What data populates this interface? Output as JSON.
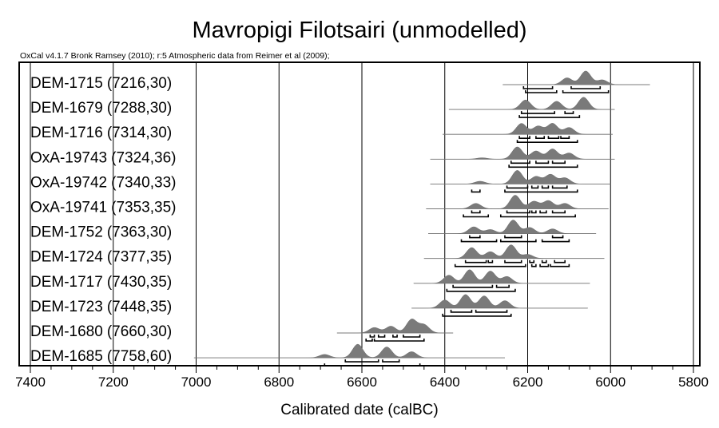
{
  "chart_data": {
    "type": "range-plot",
    "title": "Mavropigi Filotsairi (unmodelled)",
    "subtitle": "OxCal v4.1.7 Bronk Ramsey (2010); r:5 Atmospheric data from Reimer et al (2009);",
    "xlabel": "Calibrated date (calBC)",
    "xlim": [
      7400,
      5800
    ],
    "xticks": [
      7400,
      7200,
      7000,
      6800,
      6600,
      6400,
      6200,
      6000,
      5800
    ],
    "x_tick_labels": [
      "7400",
      "7200",
      "7000",
      "6800",
      "6600",
      "6400",
      "6200",
      "6000",
      "5800"
    ],
    "grid": true,
    "series": [
      {
        "label": "DEM-1715",
        "date": "(7216,30)",
        "range": [
          6260,
          5905
        ],
        "peaks": [
          [
            6105,
            0.5
          ],
          [
            6060,
            1.0
          ],
          [
            6020,
            0.35
          ]
        ],
        "hpd68": [
          [
            6210,
            6140
          ],
          [
            6095,
            6025
          ]
        ],
        "hpd95": [
          [
            6205,
            6130
          ],
          [
            6115,
            6005
          ]
        ]
      },
      {
        "label": "DEM-1679",
        "date": "(7288,30)",
        "range": [
          6390,
          5990
        ],
        "peaks": [
          [
            6205,
            0.7
          ],
          [
            6130,
            0.6
          ],
          [
            6065,
            0.9
          ]
        ],
        "hpd68": [
          [
            6215,
            6135
          ],
          [
            6110,
            6090
          ]
        ],
        "hpd95": [
          [
            6220,
            6075
          ]
        ]
      },
      {
        "label": "DEM-1716",
        "date": "(7314,30)",
        "range": [
          6405,
          5995
        ],
        "peaks": [
          [
            6215,
            0.8
          ],
          [
            6175,
            0.6
          ],
          [
            6140,
            0.8
          ],
          [
            6100,
            0.5
          ]
        ],
        "hpd68": [
          [
            6220,
            6195
          ],
          [
            6180,
            6160
          ],
          [
            6150,
            6125
          ],
          [
            6120,
            6100
          ]
        ],
        "hpd95": [
          [
            6225,
            6080
          ]
        ]
      },
      {
        "label": "OxA-19743",
        "date": "(7324,36)",
        "range": [
          6435,
          5990
        ],
        "peaks": [
          [
            6310,
            0.1
          ],
          [
            6225,
            0.9
          ],
          [
            6180,
            0.6
          ],
          [
            6140,
            0.75
          ],
          [
            6100,
            0.45
          ]
        ],
        "hpd68": [
          [
            6240,
            6195
          ],
          [
            6180,
            6150
          ],
          [
            6140,
            6110
          ]
        ],
        "hpd95": [
          [
            6245,
            6080
          ]
        ]
      },
      {
        "label": "OxA-19742",
        "date": "(7340,33)",
        "range": [
          6435,
          6000
        ],
        "peaks": [
          [
            6315,
            0.2
          ],
          [
            6225,
            1.0
          ],
          [
            6180,
            0.55
          ],
          [
            6145,
            0.7
          ],
          [
            6110,
            0.45
          ]
        ],
        "hpd68": [
          [
            6250,
            6200
          ],
          [
            6190,
            6175
          ],
          [
            6165,
            6150
          ],
          [
            6140,
            6105
          ]
        ],
        "hpd95": [
          [
            6335,
            6315
          ],
          [
            6255,
            6080
          ]
        ]
      },
      {
        "label": "OxA-19741",
        "date": "(7353,35)",
        "range": [
          6445,
          6005
        ],
        "peaks": [
          [
            6325,
            0.4
          ],
          [
            6230,
            1.0
          ],
          [
            6185,
            0.55
          ],
          [
            6150,
            0.6
          ],
          [
            6110,
            0.4
          ]
        ],
        "hpd68": [
          [
            6335,
            6315
          ],
          [
            6250,
            6195
          ],
          [
            6190,
            6180
          ],
          [
            6170,
            6155
          ],
          [
            6140,
            6110
          ]
        ],
        "hpd95": [
          [
            6355,
            6295
          ],
          [
            6265,
            6085
          ]
        ]
      },
      {
        "label": "DEM-1752",
        "date": "(7363,30)",
        "range": [
          6440,
          6035
        ],
        "peaks": [
          [
            6330,
            0.5
          ],
          [
            6290,
            0.3
          ],
          [
            6235,
            1.0
          ],
          [
            6195,
            0.45
          ],
          [
            6140,
            0.35
          ]
        ],
        "hpd68": [
          [
            6340,
            6315
          ],
          [
            6255,
            6215
          ],
          [
            6140,
            6115
          ]
        ],
        "hpd95": [
          [
            6360,
            6275
          ],
          [
            6265,
            6180
          ],
          [
            6165,
            6100
          ]
        ]
      },
      {
        "label": "DEM-1724",
        "date": "(7377,35)",
        "range": [
          6450,
          6015
        ],
        "peaks": [
          [
            6335,
            0.8
          ],
          [
            6290,
            0.5
          ],
          [
            6240,
            1.0
          ],
          [
            6200,
            0.3
          ]
        ],
        "hpd68": [
          [
            6350,
            6300
          ],
          [
            6295,
            6285
          ],
          [
            6255,
            6215
          ],
          [
            6195,
            6185
          ],
          [
            6165,
            6155
          ],
          [
            6135,
            6110
          ]
        ],
        "hpd95": [
          [
            6375,
            6205
          ],
          [
            6190,
            6180
          ],
          [
            6170,
            6150
          ],
          [
            6145,
            6100
          ]
        ]
      },
      {
        "label": "DEM-1717",
        "date": "(7430,35)",
        "range": [
          6475,
          6050
        ],
        "peaks": [
          [
            6390,
            0.6
          ],
          [
            6340,
            1.0
          ],
          [
            6290,
            0.9
          ],
          [
            6250,
            0.5
          ]
        ],
        "hpd68": [
          [
            6380,
            6285
          ],
          [
            6275,
            6245
          ]
        ],
        "hpd95": [
          [
            6395,
            6230
          ]
        ]
      },
      {
        "label": "DEM-1723",
        "date": "(7448,35)",
        "range": [
          6480,
          6055
        ],
        "peaks": [
          [
            6400,
            0.6
          ],
          [
            6350,
            1.0
          ],
          [
            6305,
            0.9
          ],
          [
            6255,
            0.55
          ]
        ],
        "hpd68": [
          [
            6385,
            6335
          ],
          [
            6325,
            6250
          ]
        ],
        "hpd95": [
          [
            6405,
            6240
          ]
        ]
      },
      {
        "label": "DEM-1680",
        "date": "(7660,30)",
        "range": [
          6660,
          6380
        ],
        "peaks": [
          [
            6570,
            0.4
          ],
          [
            6530,
            0.5
          ],
          [
            6480,
            1.0
          ],
          [
            6450,
            0.6
          ]
        ],
        "hpd68": [
          [
            6580,
            6570
          ],
          [
            6560,
            6545
          ],
          [
            6525,
            6515
          ],
          [
            6500,
            6460
          ]
        ],
        "hpd95": [
          [
            6590,
            6575
          ],
          [
            6570,
            6450
          ]
        ]
      },
      {
        "label": "DEM-1685",
        "date": "(7758,60)",
        "range": [
          7005,
          6255
        ],
        "peaks": [
          [
            6690,
            0.25
          ],
          [
            6610,
            1.0
          ],
          [
            6540,
            0.8
          ],
          [
            6480,
            0.45
          ]
        ],
        "hpd68": [
          [
            6640,
            6560
          ],
          [
            6550,
            6510
          ]
        ],
        "hpd95": [
          [
            6690,
            6460
          ]
        ]
      }
    ]
  }
}
